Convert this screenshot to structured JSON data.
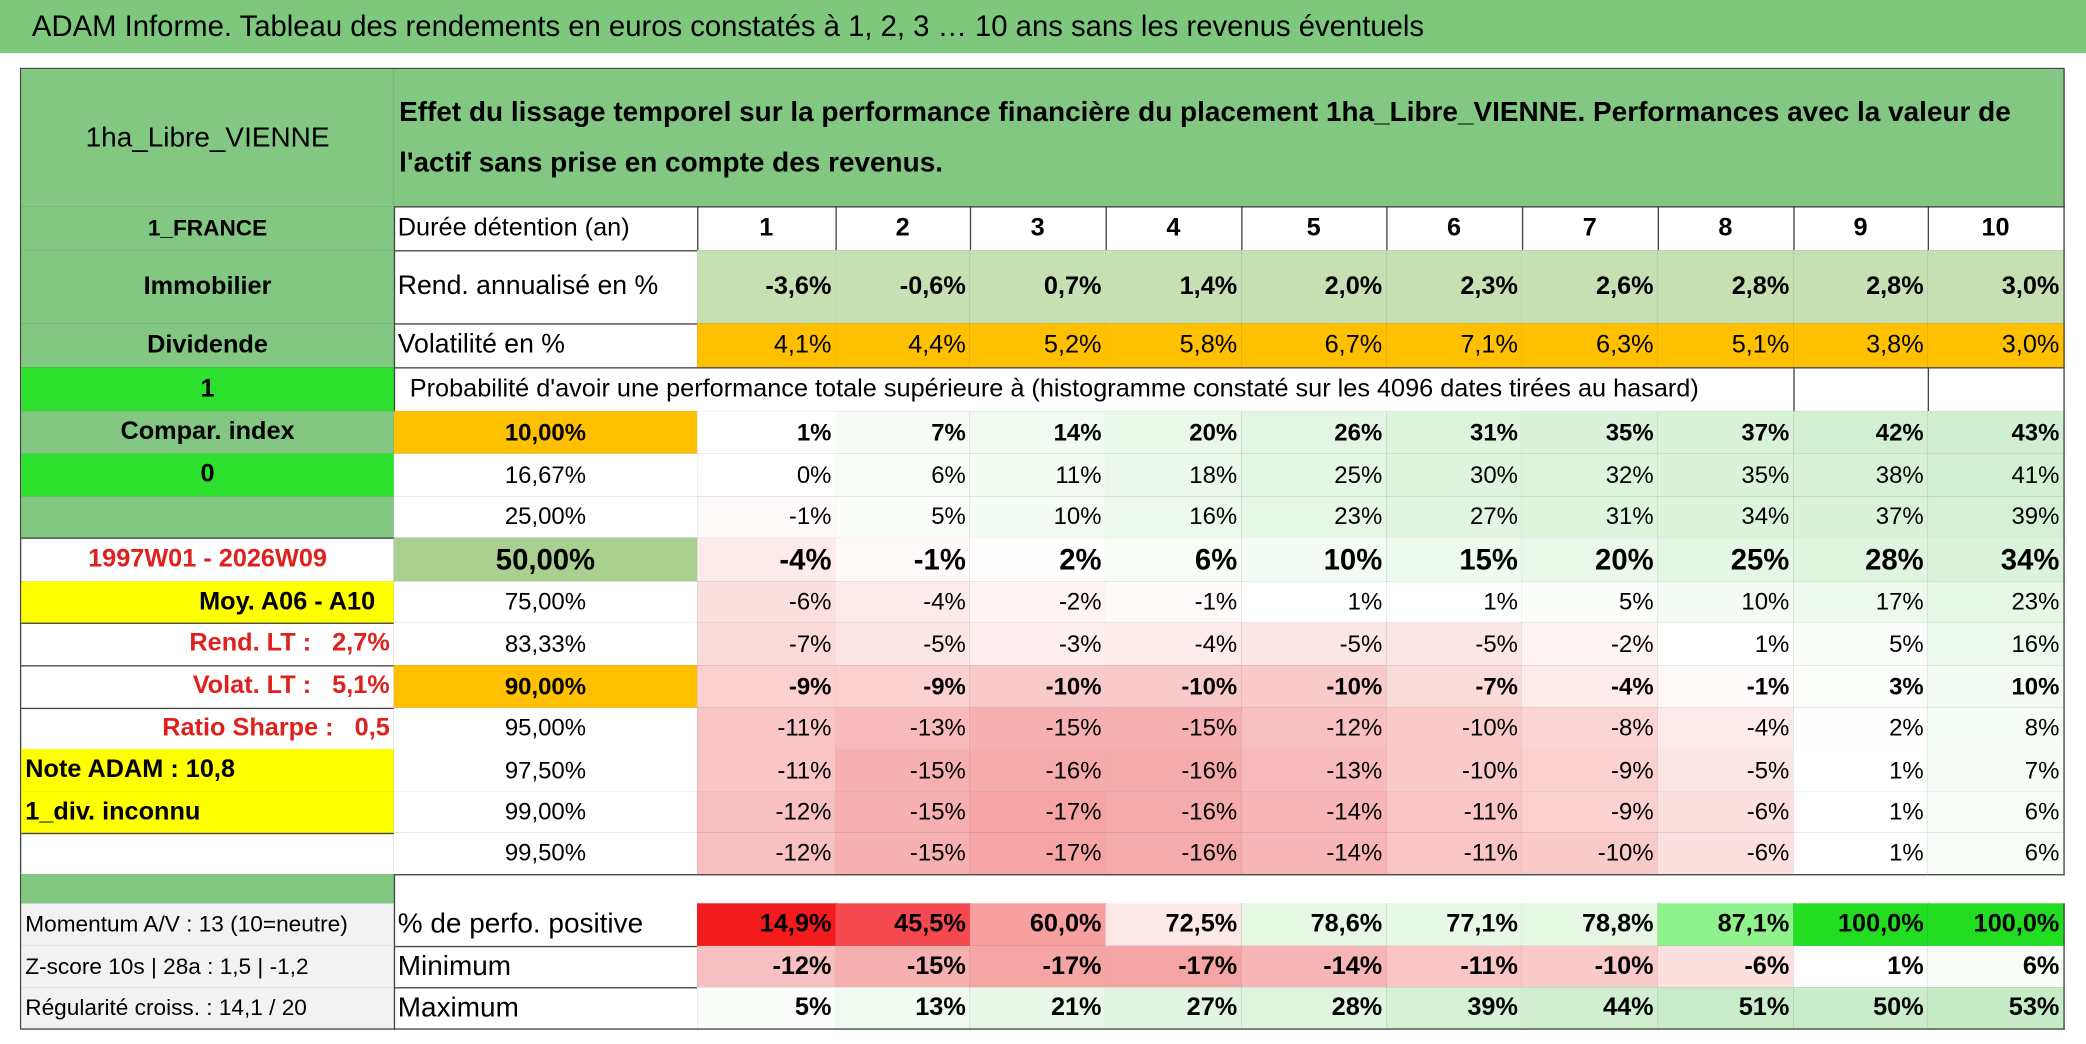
{
  "header": {
    "title": "ADAM Informe. Tableau des rendements en euros constatés à 1, 2, 3 … 10 ans sans les revenus éventuels"
  },
  "table": {
    "name": "1ha_Libre_VIENNE",
    "description": "Effet du lissage temporel sur la performance financière du placement 1ha_Libre_VIENNE. Performances avec la valeur de l'actif sans prise en compte des revenus.",
    "rows": [
      {
        "left": "1_FRANCE",
        "label": "Durée détention (an)",
        "cells": [
          "1",
          "2",
          "3",
          "4",
          "5",
          "6",
          "7",
          "8",
          "9",
          "10"
        ]
      },
      {
        "left": "Immobilier",
        "label": "Rend. annualisé en %",
        "cells": [
          "-3,6%",
          "-0,6%",
          "0,7%",
          "1,4%",
          "2,0%",
          "2,3%",
          "2,6%",
          "2,8%",
          "2,8%",
          "3,0%"
        ],
        "fill": "#c6e0b4"
      },
      {
        "left": "Dividende",
        "label": "Volatilité en %",
        "cells": [
          "4,1%",
          "4,4%",
          "5,2%",
          "5,8%",
          "6,7%",
          "7,1%",
          "6,3%",
          "5,1%",
          "3,8%",
          "3,0%"
        ],
        "fill": "#ffc000"
      },
      {
        "left": "1",
        "note": "Probabilité d'avoir une performance totale supérieure à (histogramme constaté sur les 4096 dates tirées au hasard)"
      },
      {
        "left": "Compar. index",
        "label": "10,00%",
        "cells": [
          "1%",
          "7%",
          "14%",
          "20%",
          "26%",
          "31%",
          "35%",
          "37%",
          "42%",
          "43%"
        ]
      },
      {
        "left": "0",
        "label": "16,67%",
        "cells": [
          "0%",
          "6%",
          "11%",
          "18%",
          "25%",
          "30%",
          "32%",
          "35%",
          "38%",
          "41%"
        ]
      },
      {
        "label": "25,00%",
        "cells": [
          "-1%",
          "5%",
          "10%",
          "16%",
          "23%",
          "27%",
          "31%",
          "34%",
          "37%",
          "39%"
        ]
      },
      {
        "left": "1997W01 - 2026W09",
        "label": "50,00%",
        "cells": [
          "-4%",
          "-1%",
          "2%",
          "6%",
          "10%",
          "15%",
          "20%",
          "25%",
          "28%",
          "34%"
        ]
      },
      {
        "left": "Moy. A06 - A10",
        "label": "75,00%",
        "cells": [
          "-6%",
          "-4%",
          "-2%",
          "-1%",
          "1%",
          "1%",
          "5%",
          "10%",
          "17%",
          "23%"
        ]
      },
      {
        "left": "Rend. LT :   2,7%",
        "label": "83,33%",
        "cells": [
          "-7%",
          "-5%",
          "-3%",
          "-4%",
          "-5%",
          "-5%",
          "-2%",
          "1%",
          "5%",
          "16%"
        ]
      },
      {
        "left": "Volat. LT :   5,1%",
        "label": "90,00%",
        "cells": [
          "-9%",
          "-9%",
          "-10%",
          "-10%",
          "-10%",
          "-7%",
          "-4%",
          "-1%",
          "3%",
          "10%"
        ]
      },
      {
        "left": "Ratio Sharpe :   0,5",
        "label": "95,00%",
        "cells": [
          "-11%",
          "-13%",
          "-15%",
          "-15%",
          "-12%",
          "-10%",
          "-8%",
          "-4%",
          "2%",
          "8%"
        ]
      },
      {
        "left": "Note ADAM : 10,8",
        "label": "97,50%",
        "cells": [
          "-11%",
          "-15%",
          "-16%",
          "-16%",
          "-13%",
          "-10%",
          "-9%",
          "-5%",
          "1%",
          "7%"
        ]
      },
      {
        "left": "1_div. inconnu",
        "label": "99,00%",
        "cells": [
          "-12%",
          "-15%",
          "-17%",
          "-16%",
          "-14%",
          "-11%",
          "-9%",
          "-6%",
          "1%",
          "6%"
        ]
      },
      {
        "label": "99,50%",
        "cells": [
          "-12%",
          "-15%",
          "-17%",
          "-16%",
          "-14%",
          "-11%",
          "-10%",
          "-6%",
          "1%",
          "6%"
        ]
      }
    ],
    "summary_rows": [
      {
        "left": "Momentum A/V : 13 (10=neutre)",
        "label": "% de perfo. positive",
        "cells": [
          "14,9%",
          "45,5%",
          "60,0%",
          "72,5%",
          "78,6%",
          "77,1%",
          "78,8%",
          "87,1%",
          "100,0%",
          "100,0%"
        ],
        "fills": [
          "#f31b1b",
          "#f5494f",
          "#f8a0a0",
          "#fde8e8",
          "#e6f7e4",
          "#e8f8e6",
          "#e6f7e4",
          "#8ff28c",
          "#22dd22",
          "#22dd22"
        ]
      },
      {
        "left": "Z-score 10s | 28a : 1,5 | -1,2",
        "label": "Minimum",
        "cells": [
          "-12%",
          "-15%",
          "-17%",
          "-17%",
          "-14%",
          "-11%",
          "-10%",
          "-6%",
          "1%",
          "6%"
        ]
      },
      {
        "left": "Régularité croiss. : 14,1 / 20",
        "label": "Maximum",
        "cells": [
          "5%",
          "13%",
          "21%",
          "27%",
          "28%",
          "39%",
          "44%",
          "51%",
          "50%",
          "53%"
        ]
      }
    ]
  }
}
